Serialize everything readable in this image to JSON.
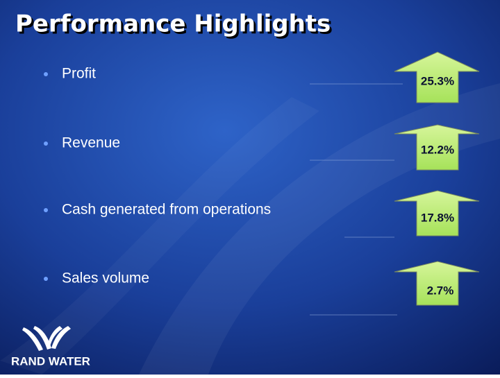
{
  "title": "Performance Highlights",
  "items": [
    {
      "label": "Profit",
      "value": "25.3%"
    },
    {
      "label": "Revenue",
      "value": "12.2%"
    },
    {
      "label": "Cash generated from operations",
      "value": "17.8%"
    },
    {
      "label": "Sales volume",
      "value": "2.7%"
    }
  ],
  "logo": {
    "text": "RAND WATER"
  }
}
